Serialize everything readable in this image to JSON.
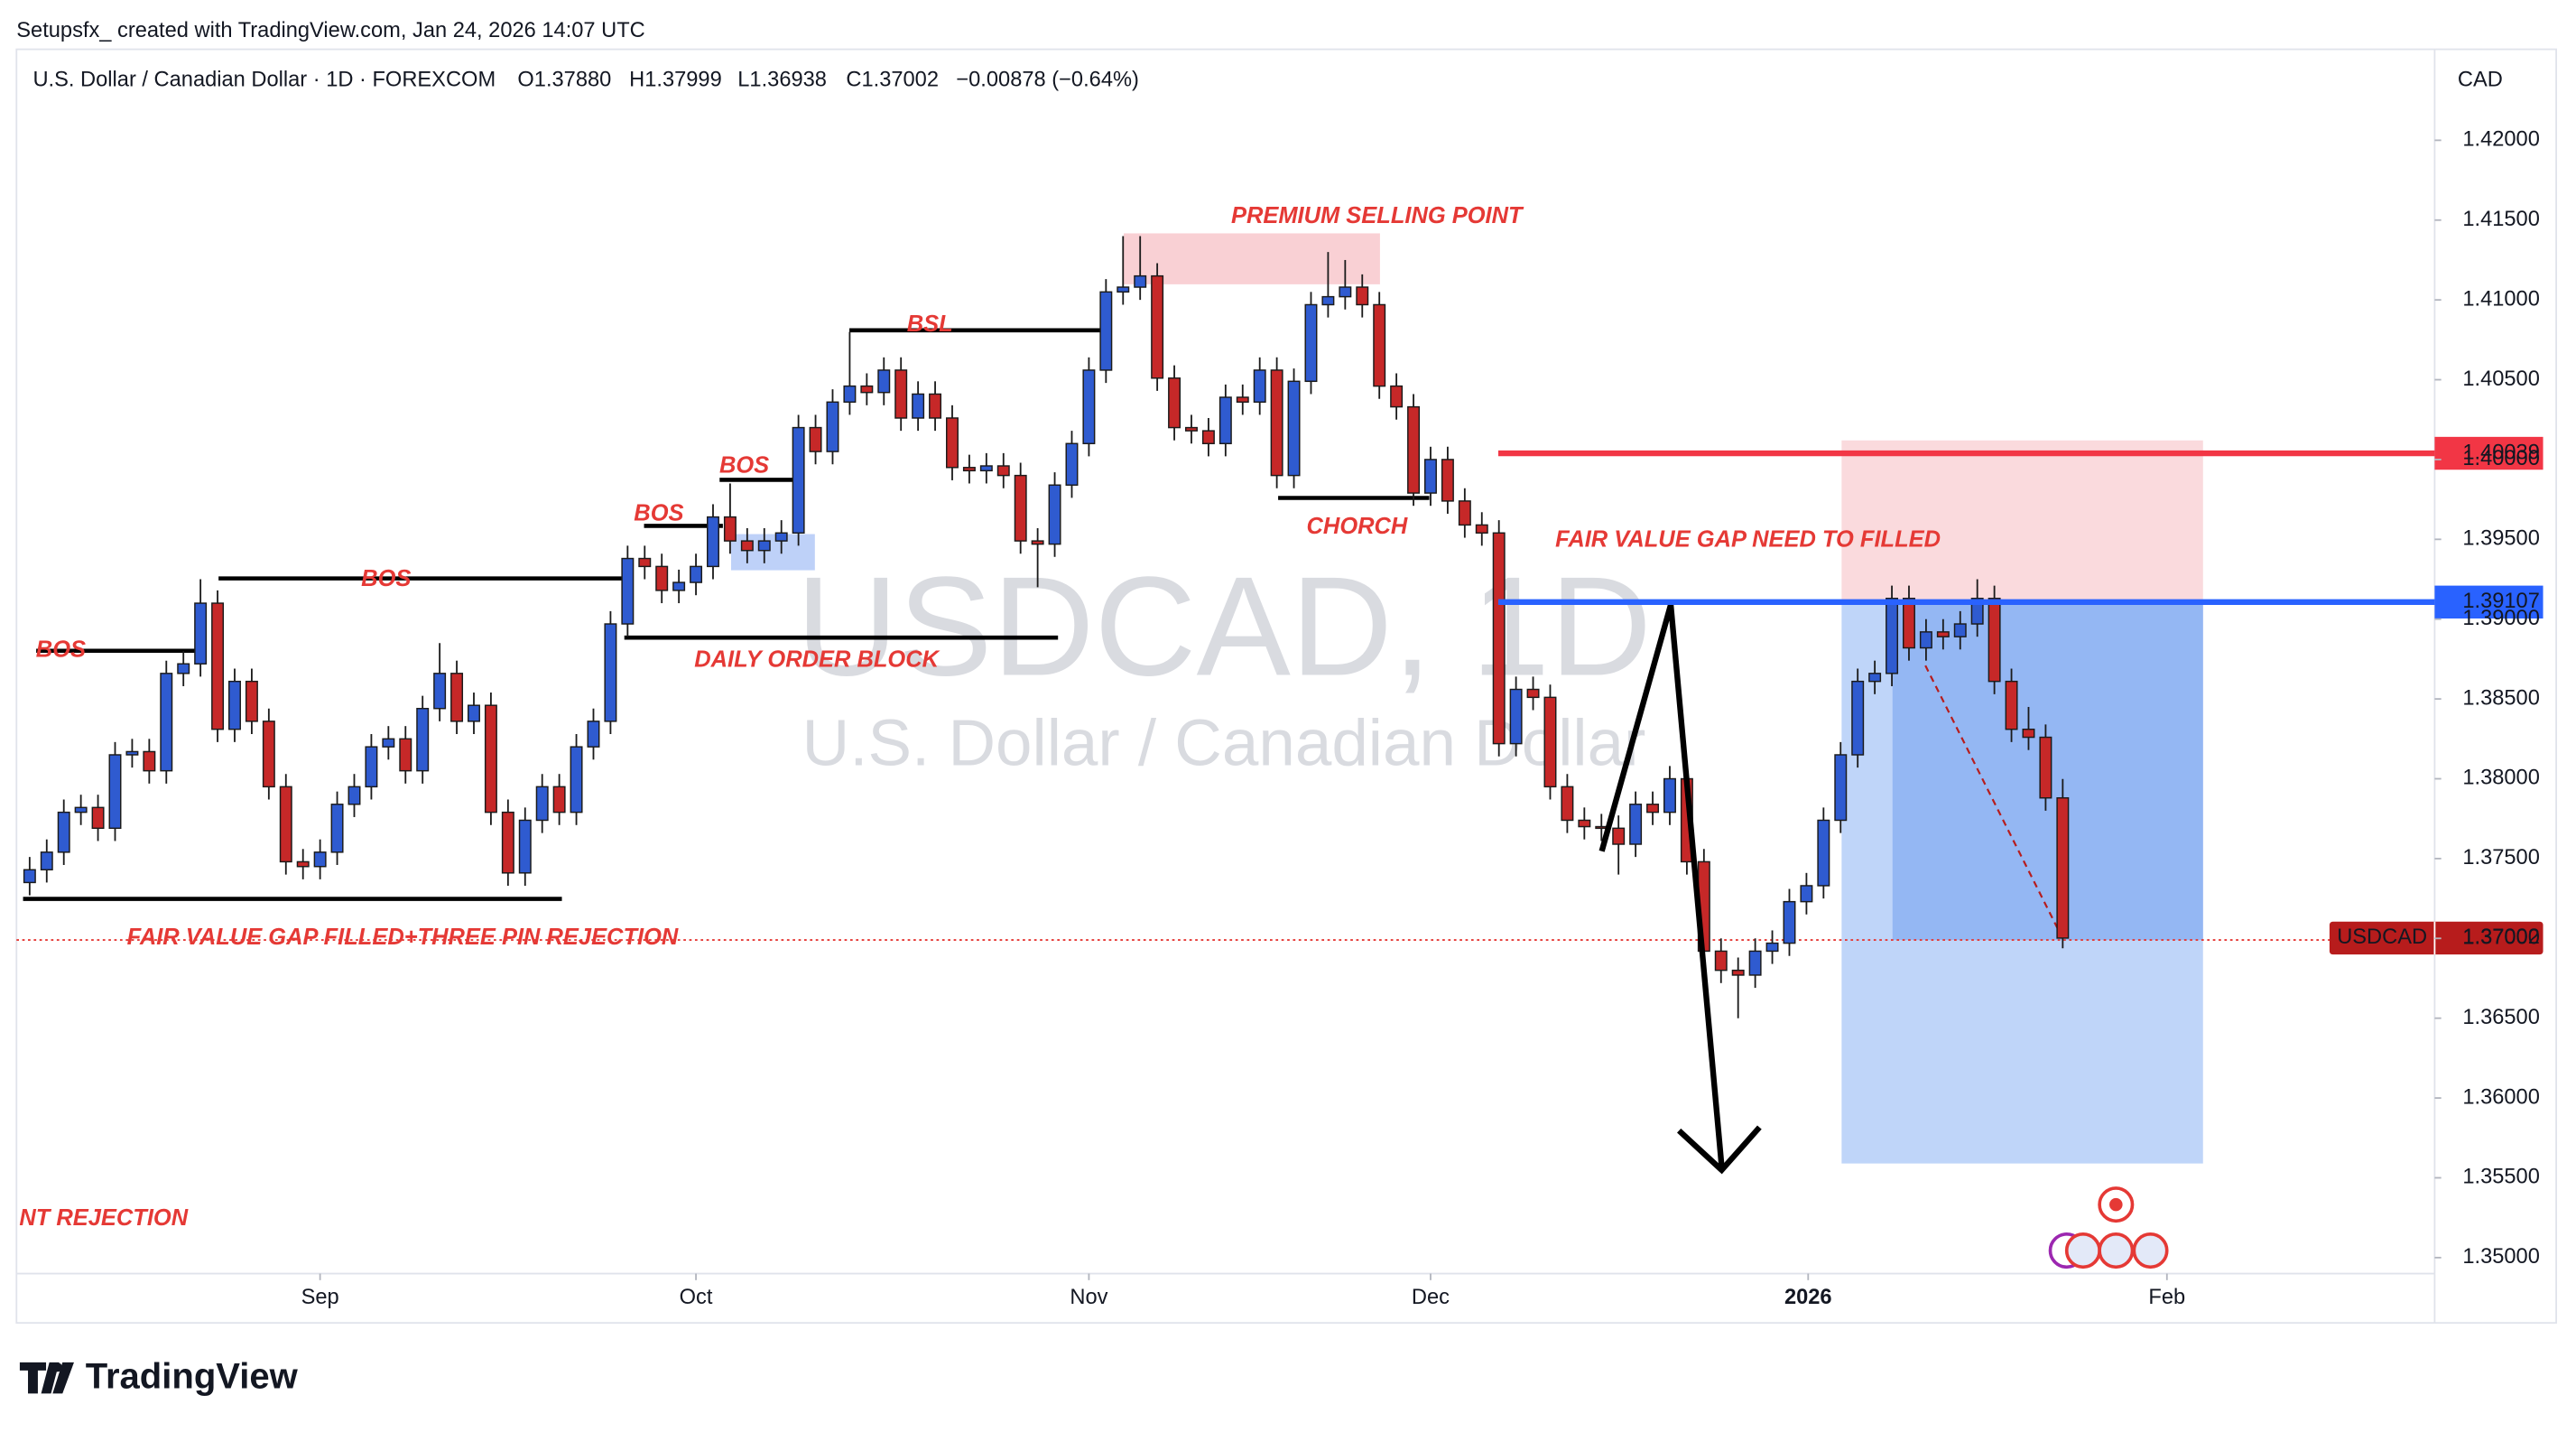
{
  "header": {
    "credit": "Setupsfx_ created with TradingView.com, Jan 24, 2026 14:07 UTC",
    "symbol": "U.S. Dollar / Canadian Dollar · 1D · FOREXCOM",
    "ohlc": [
      "O1.37880",
      "H1.37999",
      "L1.36938",
      "C1.37002"
    ],
    "change": "−0.00878 (−0.64%)",
    "currency": "CAD"
  },
  "watermark": {
    "title": "USDCAD, 1D",
    "subtitle": "U.S. Dollar / Canadian Dollar"
  },
  "footer": {
    "logo": "TradingView"
  },
  "chart_data": {
    "type": "candlestick",
    "ticker": "USDCAD",
    "up_color": "#2f5bd0",
    "down_color": "#c62828",
    "grid": false,
    "open": [
      1.3735,
      1.3743,
      1.3754,
      1.3779,
      1.3782,
      1.3769,
      1.3815,
      1.3817,
      1.3805,
      1.3866,
      1.3872,
      1.391,
      1.3831,
      1.3861,
      1.3836,
      1.3795,
      1.3748,
      1.3745,
      1.3754,
      1.3784,
      1.3795,
      1.382,
      1.3825,
      1.3805,
      1.3844,
      1.3866,
      1.3836,
      1.3846,
      1.3779,
      1.3741,
      1.3774,
      1.3795,
      1.3779,
      1.382,
      1.3836,
      1.3897,
      1.3938,
      1.3933,
      1.3918,
      1.3923,
      1.3933,
      1.3964,
      1.3949,
      1.3943,
      1.3949,
      1.3954,
      1.402,
      1.4005,
      1.4036,
      1.4046,
      1.4042,
      1.4056,
      1.4026,
      1.4041,
      1.4026,
      1.3995,
      1.3993,
      1.3996,
      1.399,
      1.3949,
      1.3947,
      1.3984,
      1.401,
      1.4056,
      1.4105,
      1.4108,
      1.4115,
      1.4051,
      1.402,
      1.4018,
      1.401,
      1.4039,
      1.4036,
      1.4056,
      1.399,
      1.4049,
      1.4097,
      1.4102,
      1.4108,
      1.4097,
      1.4046,
      1.4033,
      1.3979,
      1.4,
      1.3974,
      1.3959,
      1.3954,
      1.3822,
      1.3856,
      1.3851,
      1.3795,
      1.3774,
      1.377,
      1.3769,
      1.3759,
      1.3784,
      1.3779,
      1.38,
      1.3748,
      1.3692,
      1.368,
      1.3677,
      1.3692,
      1.3697,
      1.3723,
      1.3733,
      1.3774,
      1.3815,
      1.3861,
      1.3866,
      1.3913,
      1.3882,
      1.3892,
      1.3889,
      1.3897,
      1.3913,
      1.3861,
      1.3831,
      1.3826,
      1.3788
    ],
    "high": [
      1.3751,
      1.3762,
      1.3787,
      1.379,
      1.379,
      1.3823,
      1.3825,
      1.3825,
      1.3874,
      1.388,
      1.3925,
      1.3918,
      1.3869,
      1.3869,
      1.3844,
      1.3803,
      1.3756,
      1.3762,
      1.3792,
      1.3803,
      1.3828,
      1.3833,
      1.3833,
      1.3852,
      1.3885,
      1.3874,
      1.3854,
      1.3854,
      1.3787,
      1.3782,
      1.3803,
      1.3803,
      1.3828,
      1.3844,
      1.3905,
      1.3946,
      1.3946,
      1.3941,
      1.3931,
      1.3941,
      1.3972,
      1.3985,
      1.3957,
      1.3957,
      1.3962,
      1.4028,
      1.4028,
      1.4044,
      1.408,
      1.4054,
      1.4064,
      1.4064,
      1.4049,
      1.4049,
      1.4034,
      1.4003,
      1.4004,
      1.4004,
      1.3998,
      1.3957,
      1.3992,
      1.4018,
      1.4064,
      1.4113,
      1.414,
      1.414,
      1.4123,
      1.4059,
      1.4028,
      1.4026,
      1.4047,
      1.4047,
      1.4064,
      1.4064,
      1.4057,
      1.4105,
      1.413,
      1.4125,
      1.4116,
      1.4105,
      1.4054,
      1.4041,
      1.4008,
      1.4008,
      1.3982,
      1.3967,
      1.3962,
      1.3864,
      1.3864,
      1.3859,
      1.3803,
      1.3782,
      1.3778,
      1.3777,
      1.3792,
      1.3792,
      1.3808,
      1.3808,
      1.3756,
      1.37,
      1.3688,
      1.37,
      1.3705,
      1.3731,
      1.3741,
      1.3782,
      1.3823,
      1.3869,
      1.3874,
      1.3921,
      1.3921,
      1.39,
      1.39,
      1.3905,
      1.3925,
      1.3921,
      1.3869,
      1.3845,
      1.3834,
      1.37999
    ],
    "low": [
      1.3727,
      1.3735,
      1.3746,
      1.3771,
      1.3761,
      1.3761,
      1.3807,
      1.3797,
      1.3797,
      1.3858,
      1.3864,
      1.3823,
      1.3823,
      1.3828,
      1.3787,
      1.374,
      1.3737,
      1.3737,
      1.3746,
      1.3776,
      1.3787,
      1.3812,
      1.3797,
      1.3797,
      1.3836,
      1.3828,
      1.3828,
      1.3771,
      1.3733,
      1.3733,
      1.3766,
      1.3771,
      1.3771,
      1.3812,
      1.3828,
      1.3889,
      1.3925,
      1.391,
      1.391,
      1.3915,
      1.3925,
      1.3941,
      1.3935,
      1.3935,
      1.3941,
      1.3946,
      1.3997,
      1.3997,
      1.4028,
      1.4034,
      1.4034,
      1.4018,
      1.4018,
      1.4018,
      1.3987,
      1.3985,
      1.3985,
      1.3982,
      1.3941,
      1.392,
      1.3939,
      1.3976,
      1.4002,
      1.4048,
      1.4097,
      1.41,
      1.4043,
      1.4012,
      1.401,
      1.4002,
      1.4002,
      1.4028,
      1.4028,
      1.3982,
      1.3982,
      1.4041,
      1.4089,
      1.4094,
      1.4089,
      1.4038,
      1.4025,
      1.3971,
      1.3971,
      1.3966,
      1.3951,
      1.3946,
      1.3814,
      1.3814,
      1.3843,
      1.3787,
      1.3766,
      1.3762,
      1.3761,
      1.374,
      1.3751,
      1.3771,
      1.3771,
      1.374,
      1.3684,
      1.3672,
      1.365,
      1.3669,
      1.3684,
      1.3689,
      1.3715,
      1.3725,
      1.3766,
      1.3807,
      1.3853,
      1.3858,
      1.3874,
      1.3874,
      1.3881,
      1.3881,
      1.3889,
      1.3853,
      1.3823,
      1.3818,
      1.378,
      1.36938
    ],
    "close": [
      1.3743,
      1.3754,
      1.3779,
      1.3782,
      1.3769,
      1.3815,
      1.3817,
      1.3805,
      1.3866,
      1.3872,
      1.391,
      1.3831,
      1.3861,
      1.3836,
      1.3795,
      1.3748,
      1.3745,
      1.3754,
      1.3784,
      1.3795,
      1.382,
      1.3825,
      1.3805,
      1.3844,
      1.3866,
      1.3836,
      1.3846,
      1.3779,
      1.3741,
      1.3774,
      1.3795,
      1.3779,
      1.382,
      1.3836,
      1.3897,
      1.3938,
      1.3933,
      1.3918,
      1.3923,
      1.3933,
      1.3964,
      1.3949,
      1.3943,
      1.3949,
      1.3954,
      1.402,
      1.4005,
      1.4036,
      1.4046,
      1.4042,
      1.4056,
      1.4026,
      1.4041,
      1.4026,
      1.3995,
      1.3993,
      1.3996,
      1.399,
      1.3949,
      1.3947,
      1.3984,
      1.401,
      1.4056,
      1.4105,
      1.4108,
      1.4115,
      1.4051,
      1.402,
      1.4018,
      1.401,
      1.4039,
      1.4036,
      1.4056,
      1.399,
      1.4049,
      1.4097,
      1.4102,
      1.4108,
      1.4097,
      1.4046,
      1.4033,
      1.3979,
      1.4,
      1.3974,
      1.3959,
      1.3954,
      1.3822,
      1.3856,
      1.3851,
      1.3795,
      1.3774,
      1.377,
      1.3769,
      1.3759,
      1.3784,
      1.3779,
      1.38,
      1.3748,
      1.3692,
      1.368,
      1.3677,
      1.3692,
      1.3697,
      1.3723,
      1.3733,
      1.3774,
      1.3815,
      1.3861,
      1.3866,
      1.3913,
      1.3882,
      1.3892,
      1.3889,
      1.3897,
      1.3913,
      1.3861,
      1.3831,
      1.3826,
      1.3788,
      1.37002
    ],
    "xlim": [
      -0.77,
      140.77
    ],
    "xticks": [
      {
        "value": 17,
        "label": "Sep"
      },
      {
        "value": 39,
        "label": "Oct"
      },
      {
        "value": 62,
        "label": "Nov"
      },
      {
        "value": 82,
        "label": "Dec"
      },
      {
        "value": 104.1,
        "label": "2026"
      },
      {
        "value": 125.1,
        "label": "Feb"
      }
    ],
    "ylim": [
      1.349,
      1.4257
    ],
    "yticks": [
      {
        "value": 1.35,
        "label": "1.35000"
      },
      {
        "value": 1.355,
        "label": "1.35500"
      },
      {
        "value": 1.36,
        "label": "1.36000"
      },
      {
        "value": 1.365,
        "label": "1.36500"
      },
      {
        "value": 1.37,
        "label": "1.37000"
      },
      {
        "value": 1.375,
        "label": "1.37500"
      },
      {
        "value": 1.38,
        "label": "1.38000"
      },
      {
        "value": 1.385,
        "label": "1.38500"
      },
      {
        "value": 1.39,
        "label": "1.39000"
      },
      {
        "value": 1.395,
        "label": "1.39500"
      },
      {
        "value": 1.4,
        "label": "1.40000"
      },
      {
        "value": 1.405,
        "label": "1.40500"
      },
      {
        "value": 1.41,
        "label": "1.41000"
      },
      {
        "value": 1.415,
        "label": "1.41500"
      },
      {
        "value": 1.42,
        "label": "1.42000"
      }
    ],
    "levels": [
      {
        "value": 1.40039,
        "color": "#f23645"
      },
      {
        "value": 1.39107,
        "color": "#2962ff"
      }
    ],
    "annotations": [
      "BOS",
      "BOS",
      "BOS",
      "BOS",
      "BSL",
      "PREMIUM SELLING POINT",
      "CHORCH",
      "DAILY ORDER BLOCK",
      "FAIR VALUE GAP NEED TO FILLED",
      "FAIR VALUE GAP FILLED+THREE PIN REJECTION",
      "NT REJECTION"
    ]
  }
}
